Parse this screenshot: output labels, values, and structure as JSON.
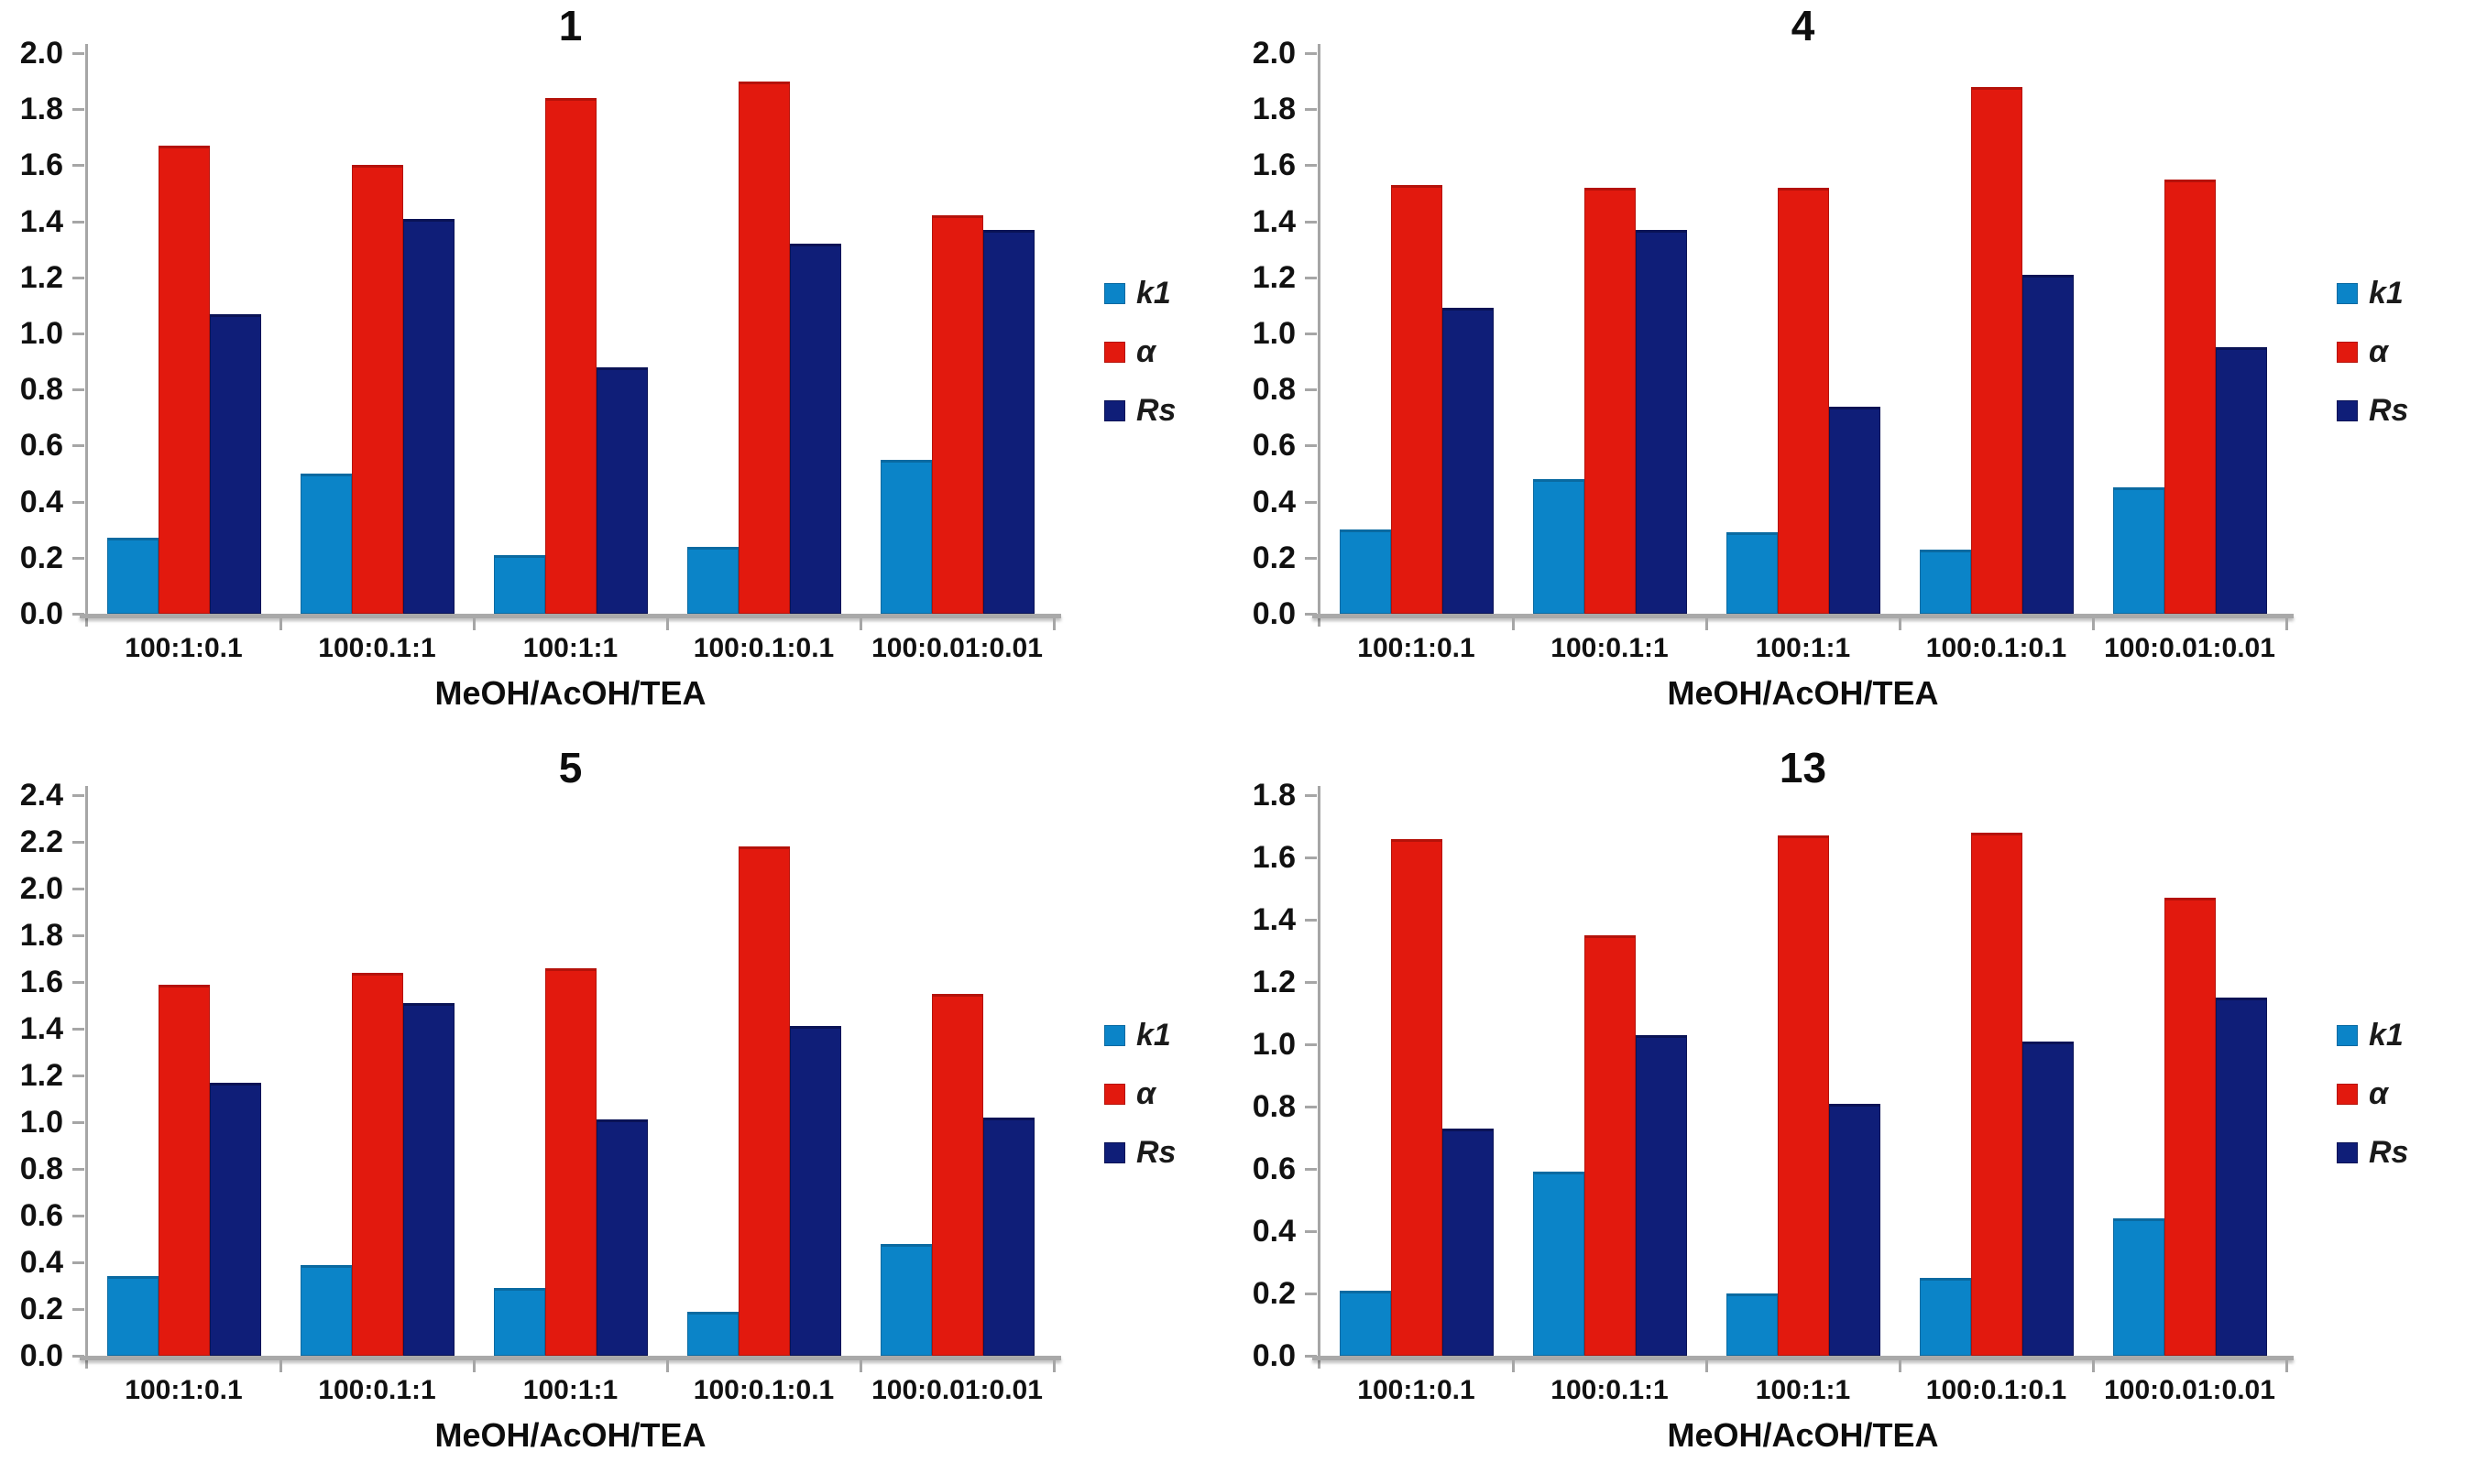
{
  "figure": {
    "background": "#ffffff",
    "legend_labels": [
      "k1",
      "α",
      "Rs"
    ],
    "series_colors": {
      "k1": "#0b84c8",
      "alpha": "#e2190e",
      "Rs": "#0f1e78"
    },
    "series_edge_colors": {
      "k1": "#0a6aa1",
      "alpha": "#b5120a",
      "Rs": "#0a1356"
    },
    "axis_color": "#a6a6a6"
  },
  "chart_data": [
    {
      "type": "bar",
      "title": "1",
      "xlabel": "MeOH/AcOH/TEA",
      "ylabel": "",
      "ylim": [
        0.0,
        2.0
      ],
      "ytick_step": 0.2,
      "yticks": [
        "0.0",
        "0.2",
        "0.4",
        "0.6",
        "0.8",
        "1.0",
        "1.2",
        "1.4",
        "1.6",
        "1.8",
        "2.0"
      ],
      "grid": false,
      "legend_position": "right",
      "categories": [
        "100:1:0.1",
        "100:0.1:1",
        "100:1:1",
        "100:0.1:0.1",
        "100:0.01:0.01"
      ],
      "series": [
        {
          "name": "k1",
          "key": "k1",
          "color": "#0b84c8",
          "edge": "#0a6aa1",
          "values": [
            0.27,
            0.5,
            0.21,
            0.24,
            0.55
          ]
        },
        {
          "name": "α",
          "key": "alpha",
          "color": "#e2190e",
          "edge": "#b5120a",
          "values": [
            1.67,
            1.6,
            1.84,
            1.9,
            1.42
          ]
        },
        {
          "name": "Rs",
          "key": "Rs",
          "color": "#0f1e78",
          "edge": "#0a1356",
          "values": [
            1.07,
            1.41,
            0.88,
            1.32,
            1.37
          ]
        }
      ]
    },
    {
      "type": "bar",
      "title": "4",
      "xlabel": "MeOH/AcOH/TEA",
      "ylabel": "",
      "ylim": [
        0.0,
        2.0
      ],
      "ytick_step": 0.2,
      "yticks": [
        "0.0",
        "0.2",
        "0.4",
        "0.6",
        "0.8",
        "1.0",
        "1.2",
        "1.4",
        "1.6",
        "1.8",
        "2.0"
      ],
      "grid": false,
      "legend_position": "right",
      "categories": [
        "100:1:0.1",
        "100:0.1:1",
        "100:1:1",
        "100:0.1:0.1",
        "100:0.01:0.01"
      ],
      "series": [
        {
          "name": "k1",
          "key": "k1",
          "color": "#0b84c8",
          "edge": "#0a6aa1",
          "values": [
            0.3,
            0.48,
            0.29,
            0.23,
            0.45
          ]
        },
        {
          "name": "α",
          "key": "alpha",
          "color": "#e2190e",
          "edge": "#b5120a",
          "values": [
            1.53,
            1.52,
            1.52,
            1.88,
            1.55
          ]
        },
        {
          "name": "Rs",
          "key": "Rs",
          "color": "#0f1e78",
          "edge": "#0a1356",
          "values": [
            1.09,
            1.37,
            0.74,
            1.21,
            0.95
          ]
        }
      ]
    },
    {
      "type": "bar",
      "title": "5",
      "xlabel": "MeOH/AcOH/TEA",
      "ylabel": "",
      "ylim": [
        0.0,
        2.4
      ],
      "ytick_step": 0.2,
      "yticks": [
        "0.0",
        "0.2",
        "0.4",
        "0.6",
        "0.8",
        "1.0",
        "1.2",
        "1.4",
        "1.6",
        "1.8",
        "2.0",
        "2.2",
        "2.4"
      ],
      "grid": false,
      "legend_position": "right",
      "categories": [
        "100:1:0.1",
        "100:0.1:1",
        "100:1:1",
        "100:0.1:0.1",
        "100:0.01:0.01"
      ],
      "series": [
        {
          "name": "k1",
          "key": "k1",
          "color": "#0b84c8",
          "edge": "#0a6aa1",
          "values": [
            0.34,
            0.39,
            0.29,
            0.19,
            0.48
          ]
        },
        {
          "name": "α",
          "key": "alpha",
          "color": "#e2190e",
          "edge": "#b5120a",
          "values": [
            1.59,
            1.64,
            1.66,
            2.18,
            1.55
          ]
        },
        {
          "name": "Rs",
          "key": "Rs",
          "color": "#0f1e78",
          "edge": "#0a1356",
          "values": [
            1.17,
            1.51,
            1.01,
            1.41,
            1.02
          ]
        }
      ]
    },
    {
      "type": "bar",
      "title": "13",
      "xlabel": "MeOH/AcOH/TEA",
      "ylabel": "",
      "ylim": [
        0.0,
        1.8
      ],
      "ytick_step": 0.2,
      "yticks": [
        "0.0",
        "0.2",
        "0.4",
        "0.6",
        "0.8",
        "1.0",
        "1.2",
        "1.4",
        "1.6",
        "1.8"
      ],
      "grid": false,
      "legend_position": "right",
      "categories": [
        "100:1:0.1",
        "100:0.1:1",
        "100:1:1",
        "100:0.1:0.1",
        "100:0.01:0.01"
      ],
      "series": [
        {
          "name": "k1",
          "key": "k1",
          "color": "#0b84c8",
          "edge": "#0a6aa1",
          "values": [
            0.21,
            0.59,
            0.2,
            0.25,
            0.44
          ]
        },
        {
          "name": "α",
          "key": "alpha",
          "color": "#e2190e",
          "edge": "#b5120a",
          "values": [
            1.66,
            1.35,
            1.67,
            1.68,
            1.47
          ]
        },
        {
          "name": "Rs",
          "key": "Rs",
          "color": "#0f1e78",
          "edge": "#0a1356",
          "values": [
            0.73,
            1.03,
            0.81,
            1.01,
            1.15
          ]
        }
      ]
    }
  ]
}
